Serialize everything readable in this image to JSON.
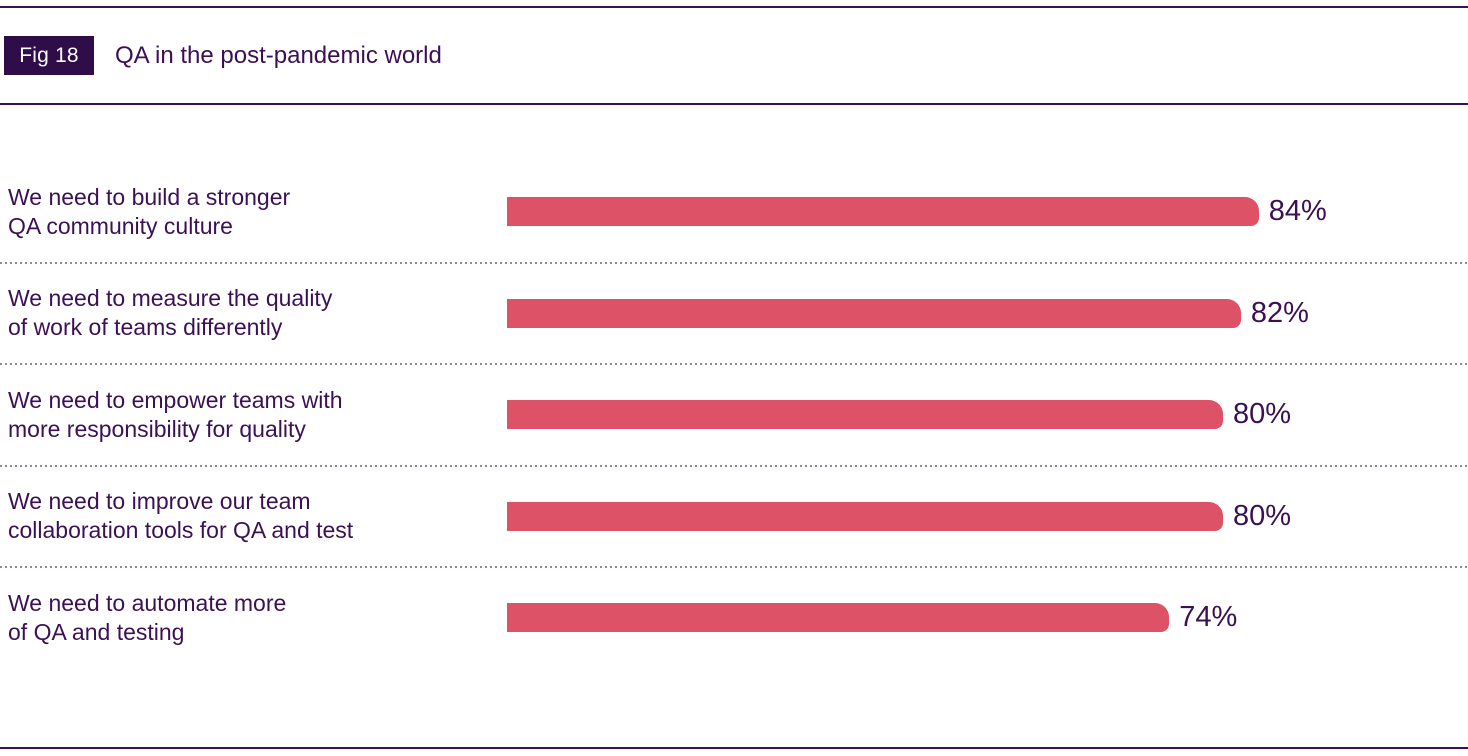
{
  "figure": {
    "tag": "Fig 18",
    "title": "QA in the post-pandemic world"
  },
  "colors": {
    "bar": "#dd5266",
    "text": "#3b1154",
    "badge_bg": "#2e0d49",
    "separator_dots": "#8d86a6",
    "rule": "#3b1154"
  },
  "chart_data": {
    "type": "bar",
    "orientation": "horizontal",
    "title": "QA in the post-pandemic world",
    "unit": "%",
    "xlim": [
      0,
      100
    ],
    "grid": false,
    "legend": false,
    "categories": [
      "We need to build a stronger QA community culture",
      "We need to measure the quality of work of teams differently",
      "We need to empower teams with more responsibility for quality",
      "We need to improve our team collaboration tools for QA and test",
      "We need to automate more of QA and testing"
    ],
    "values": [
      84,
      82,
      80,
      80,
      74
    ],
    "rows": [
      {
        "label_lines": [
          "We need to build a stronger",
          "QA community culture"
        ],
        "value": 84,
        "value_label": "84%"
      },
      {
        "label_lines": [
          "We need to measure the quality",
          "of work of teams differently"
        ],
        "value": 82,
        "value_label": "82%"
      },
      {
        "label_lines": [
          "We need to empower teams with",
          "more responsibility for quality"
        ],
        "value": 80,
        "value_label": "80%"
      },
      {
        "label_lines": [
          "We need to improve our team",
          "collaboration tools for QA and test"
        ],
        "value": 80,
        "value_label": "80%"
      },
      {
        "label_lines": [
          "We need to automate more",
          "of QA and testing"
        ],
        "value": 74,
        "value_label": "74%"
      }
    ]
  }
}
